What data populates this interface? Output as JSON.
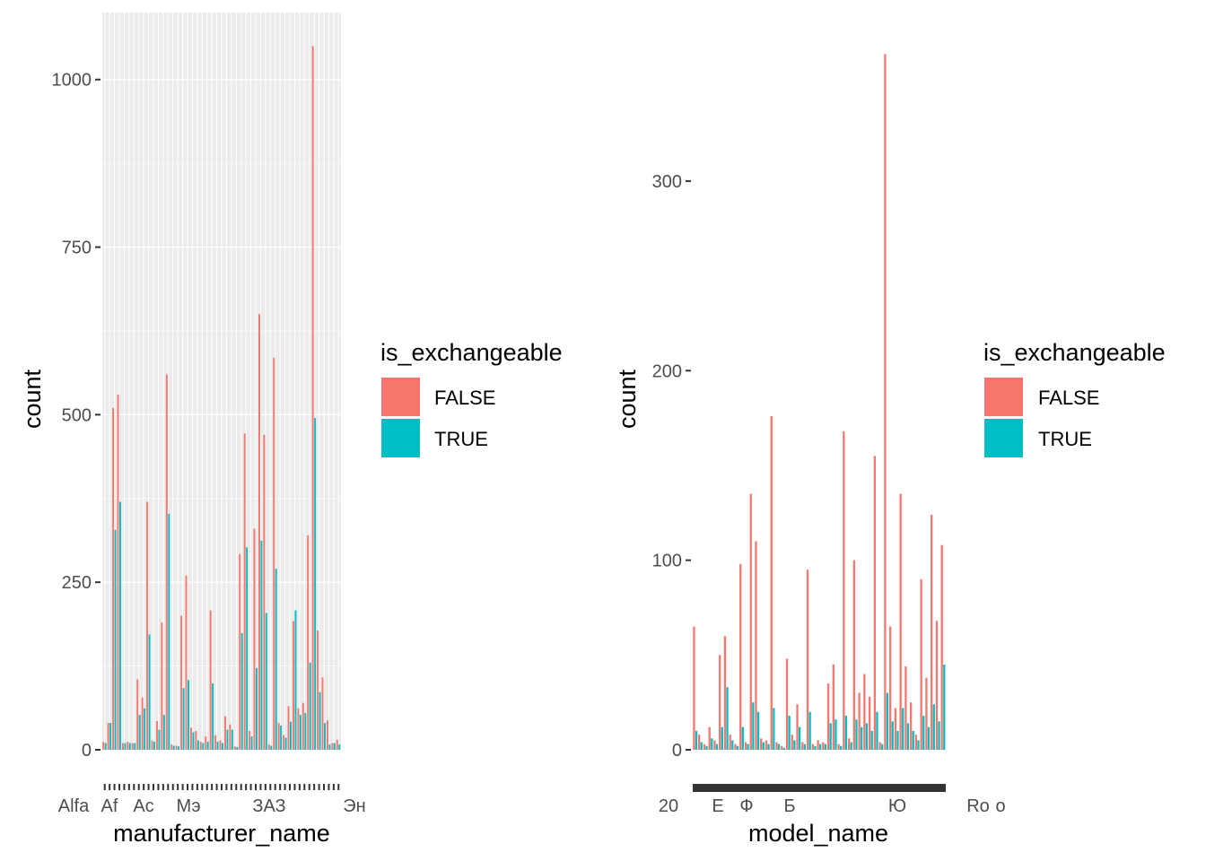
{
  "colors": {
    "false": "#F8766D",
    "true": "#00BFC4",
    "panel": "#EBEBEB",
    "grid": "#FFFFFF"
  },
  "chart_data": [
    {
      "type": "bar",
      "xlabel": "manufacturer_name",
      "ylabel": "count",
      "ylim": [
        0,
        1100
      ],
      "yticks": [
        0,
        250,
        500,
        750,
        1000
      ],
      "grid": true,
      "legend": {
        "title": "is_exchangeable",
        "entries": [
          "FALSE",
          "TRUE"
        ],
        "placement": "right"
      },
      "x_tick_labels_visible": [
        "Alfa",
        "Аf",
        "Ac",
        "Мэ",
        "ЗАЗ",
        "Эн"
      ],
      "series": [
        {
          "name": "FALSE",
          "values": [
            12,
            40,
            510,
            530,
            10,
            12,
            10,
            105,
            78,
            370,
            14,
            43,
            190,
            560,
            8,
            6,
            200,
            260,
            33,
            28,
            12,
            20,
            208,
            22,
            14,
            50,
            38,
            5,
            292,
            472,
            28,
            330,
            650,
            470,
            8,
            585,
            40,
            22,
            65,
            192,
            62,
            70,
            320,
            1050,
            178,
            108,
            44,
            10,
            15
          ]
        },
        {
          "name": "TRUE",
          "values": [
            10,
            40,
            328,
            370,
            10,
            10,
            10,
            52,
            62,
            172,
            12,
            30,
            52,
            352,
            6,
            5,
            92,
            104,
            26,
            14,
            10,
            12,
            99,
            12,
            10,
            30,
            30,
            4,
            174,
            302,
            20,
            122,
            312,
            204,
            6,
            270,
            36,
            18,
            42,
            208,
            52,
            55,
            130,
            495,
            86,
            40,
            8,
            10,
            8
          ]
        }
      ]
    },
    {
      "type": "bar",
      "xlabel": "model_name",
      "ylabel": "count",
      "ylim": [
        0,
        370
      ],
      "yticks": [
        0,
        100,
        200,
        300
      ],
      "grid": false,
      "legend": {
        "title": "is_exchangeable",
        "entries": [
          "FALSE",
          "TRUE"
        ],
        "placement": "right"
      },
      "x_tick_labels_visible": [
        "20",
        "Е",
        "Ф",
        "Б",
        "Ю",
        "Ro",
        "о"
      ],
      "series": [
        {
          "name": "FALSE",
          "values": [
            65,
            8,
            3,
            12,
            5,
            50,
            60,
            8,
            3,
            98,
            4,
            135,
            110,
            6,
            5,
            176,
            4,
            2,
            48,
            8,
            24,
            4,
            95,
            3,
            5,
            4,
            35,
            45,
            3,
            168,
            6,
            100,
            30,
            40,
            28,
            155,
            4,
            367,
            65,
            22,
            135,
            44,
            25,
            8,
            90,
            38,
            124,
            68,
            108
          ]
        },
        {
          "name": "TRUE",
          "values": [
            10,
            4,
            2,
            6,
            3,
            12,
            33,
            5,
            2,
            12,
            3,
            25,
            20,
            4,
            3,
            22,
            3,
            1,
            18,
            5,
            12,
            3,
            20,
            2,
            3,
            3,
            14,
            16,
            2,
            18,
            4,
            16,
            12,
            14,
            10,
            20,
            3,
            30,
            15,
            10,
            22,
            14,
            10,
            5,
            18,
            12,
            24,
            15,
            45
          ]
        }
      ]
    }
  ]
}
